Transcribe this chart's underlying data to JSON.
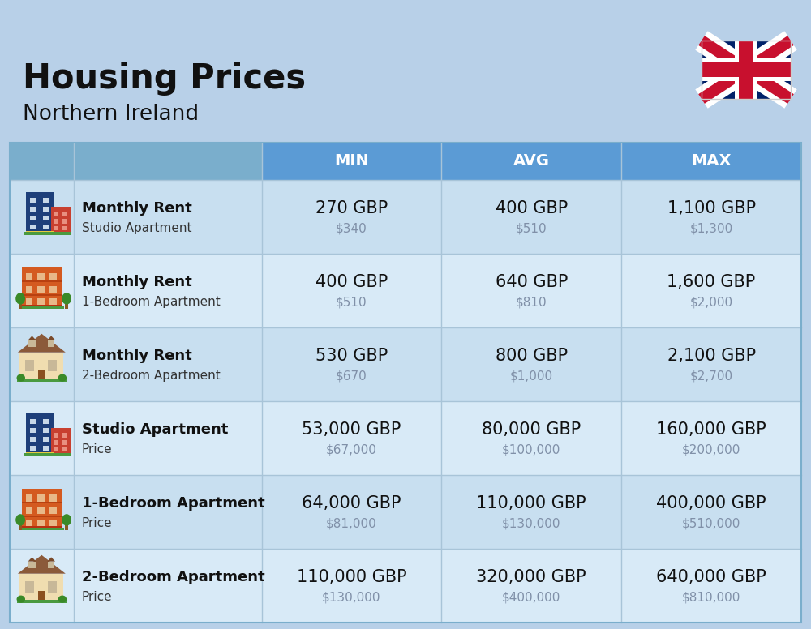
{
  "title": "Housing Prices",
  "subtitle": "Northern Ireland",
  "background_color": "#b8d0e8",
  "header_color": "#5b9bd5",
  "header_text_color": "#ffffff",
  "headers": [
    "",
    "",
    "MIN",
    "AVG",
    "MAX"
  ],
  "rows": [
    {
      "label_bold": "Monthly Rent",
      "label_sub": "Studio Apartment",
      "min_gbp": "270 GBP",
      "min_usd": "$340",
      "avg_gbp": "400 GBP",
      "avg_usd": "$510",
      "max_gbp": "1,100 GBP",
      "max_usd": "$1,300",
      "icon_type": "studio_blue"
    },
    {
      "label_bold": "Monthly Rent",
      "label_sub": "1-Bedroom Apartment",
      "min_gbp": "400 GBP",
      "min_usd": "$510",
      "avg_gbp": "640 GBP",
      "avg_usd": "$810",
      "max_gbp": "1,600 GBP",
      "max_usd": "$2,000",
      "icon_type": "one_bed_orange"
    },
    {
      "label_bold": "Monthly Rent",
      "label_sub": "2-Bedroom Apartment",
      "min_gbp": "530 GBP",
      "min_usd": "$670",
      "avg_gbp": "800 GBP",
      "avg_usd": "$1,000",
      "max_gbp": "2,100 GBP",
      "max_usd": "$2,700",
      "icon_type": "two_bed_house"
    },
    {
      "label_bold": "Studio Apartment",
      "label_sub": "Price",
      "min_gbp": "53,000 GBP",
      "min_usd": "$67,000",
      "avg_gbp": "80,000 GBP",
      "avg_usd": "$100,000",
      "max_gbp": "160,000 GBP",
      "max_usd": "$200,000",
      "icon_type": "studio_blue"
    },
    {
      "label_bold": "1-Bedroom Apartment",
      "label_sub": "Price",
      "min_gbp": "64,000 GBP",
      "min_usd": "$81,000",
      "avg_gbp": "110,000 GBP",
      "avg_usd": "$130,000",
      "max_gbp": "400,000 GBP",
      "max_usd": "$510,000",
      "icon_type": "one_bed_orange"
    },
    {
      "label_bold": "2-Bedroom Apartment",
      "label_sub": "Price",
      "min_gbp": "110,000 GBP",
      "min_usd": "$130,000",
      "avg_gbp": "320,000 GBP",
      "avg_usd": "$400,000",
      "max_gbp": "640,000 GBP",
      "max_usd": "$810,000",
      "icon_type": "two_bed_house"
    }
  ],
  "title_fontsize": 30,
  "subtitle_fontsize": 19,
  "header_fontsize": 14,
  "cell_gbp_fontsize": 15,
  "cell_usd_fontsize": 11,
  "label_bold_fontsize": 13,
  "label_sub_fontsize": 11
}
